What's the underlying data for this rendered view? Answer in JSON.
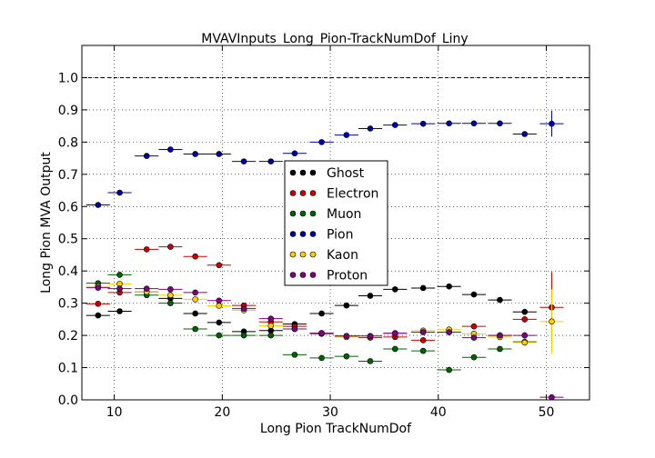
{
  "chart_data": {
    "type": "scatter",
    "title": "MVAVInputs_Long_Pion-TrackNumDof_Liny",
    "xlabel": "Long Pion TrackNumDof",
    "ylabel": "Long Pion MVA Output",
    "xlim": [
      7,
      54
    ],
    "ylim": [
      0,
      1.1
    ],
    "x_ticks": [
      "10",
      "20",
      "30",
      "40",
      "50"
    ],
    "y_ticks": [
      "0.0",
      "0.1",
      "0.2",
      "0.3",
      "0.4",
      "0.5",
      "0.6",
      "0.7",
      "0.8",
      "0.9",
      "1.0"
    ],
    "reference_line_y": 1.0,
    "grid": true,
    "legend_position": "center",
    "x": [
      8.5,
      10.5,
      13,
      15.2,
      17.5,
      19.7,
      22,
      24.5,
      26.7,
      29.2,
      31.5,
      33.7,
      36,
      38.6,
      41,
      43.3,
      45.7,
      48,
      50.5
    ],
    "x_halfwidth": 1.1,
    "series": [
      {
        "name": "Ghost",
        "color": "#000000",
        "values": [
          0.262,
          0.275,
          0.335,
          0.315,
          0.268,
          0.24,
          0.212,
          0.215,
          0.235,
          0.268,
          0.293,
          0.323,
          0.343,
          0.347,
          0.352,
          0.327,
          0.31,
          0.273,
          null
        ],
        "errors": [
          0.005,
          0.005,
          0.005,
          0.005,
          0.005,
          0.005,
          0.005,
          0.005,
          0.005,
          0.005,
          0.005,
          0.005,
          0.005,
          0.005,
          0.005,
          0.005,
          0.005,
          0.008,
          null
        ]
      },
      {
        "name": "Electron",
        "color": "#cc0000",
        "values": [
          0.298,
          0.333,
          0.467,
          0.475,
          0.445,
          0.418,
          0.293,
          0.242,
          0.228,
          0.205,
          0.198,
          0.193,
          0.195,
          0.185,
          0.21,
          0.228,
          0.2,
          0.25,
          0.287
        ],
        "errors": [
          0.005,
          0.005,
          0.005,
          0.005,
          0.005,
          0.005,
          0.005,
          0.005,
          0.005,
          0.005,
          0.005,
          0.005,
          0.005,
          0.005,
          0.005,
          0.005,
          0.005,
          0.01,
          0.11
        ]
      },
      {
        "name": "Muon",
        "color": "#006400",
        "values": [
          0.362,
          0.388,
          0.325,
          0.3,
          0.22,
          0.2,
          0.2,
          0.2,
          0.14,
          0.13,
          0.135,
          0.12,
          0.158,
          0.152,
          0.093,
          0.132,
          0.158,
          0.18,
          null
        ],
        "errors": [
          0.006,
          0.006,
          0.006,
          0.006,
          0.006,
          0.006,
          0.006,
          0.006,
          0.006,
          0.006,
          0.006,
          0.006,
          0.006,
          0.006,
          0.006,
          0.006,
          0.006,
          0.01,
          null
        ]
      },
      {
        "name": "Pion",
        "color": "#0000aa",
        "values": [
          0.605,
          0.643,
          0.757,
          0.777,
          0.763,
          0.763,
          0.74,
          0.74,
          0.765,
          0.8,
          0.822,
          0.842,
          0.853,
          0.857,
          0.858,
          0.858,
          0.858,
          0.825,
          0.857
        ],
        "errors": [
          0.003,
          0.003,
          0.003,
          0.003,
          0.003,
          0.003,
          0.003,
          0.003,
          0.003,
          0.003,
          0.003,
          0.003,
          0.003,
          0.003,
          0.003,
          0.003,
          0.003,
          0.005,
          0.04
        ]
      },
      {
        "name": "Kaon",
        "color": "#ffcc00",
        "values": [
          0.352,
          0.36,
          0.335,
          0.325,
          0.312,
          0.292,
          0.278,
          0.23,
          0.22,
          0.207,
          0.195,
          0.198,
          0.205,
          0.215,
          0.218,
          0.205,
          0.195,
          0.178,
          0.243
        ],
        "errors": [
          0.005,
          0.005,
          0.005,
          0.005,
          0.005,
          0.005,
          0.005,
          0.005,
          0.005,
          0.005,
          0.005,
          0.005,
          0.005,
          0.005,
          0.005,
          0.005,
          0.005,
          0.01,
          0.1
        ]
      },
      {
        "name": "Proton",
        "color": "#800080",
        "values": [
          0.348,
          0.345,
          0.345,
          0.343,
          0.333,
          0.308,
          0.283,
          0.252,
          0.22,
          0.207,
          0.198,
          0.198,
          0.207,
          0.21,
          0.21,
          0.193,
          0.2,
          0.2,
          0.008
        ],
        "errors": [
          0.005,
          0.005,
          0.005,
          0.005,
          0.005,
          0.005,
          0.005,
          0.005,
          0.005,
          0.005,
          0.005,
          0.005,
          0.005,
          0.005,
          0.005,
          0.005,
          0.005,
          0.01,
          0.005
        ]
      }
    ]
  }
}
